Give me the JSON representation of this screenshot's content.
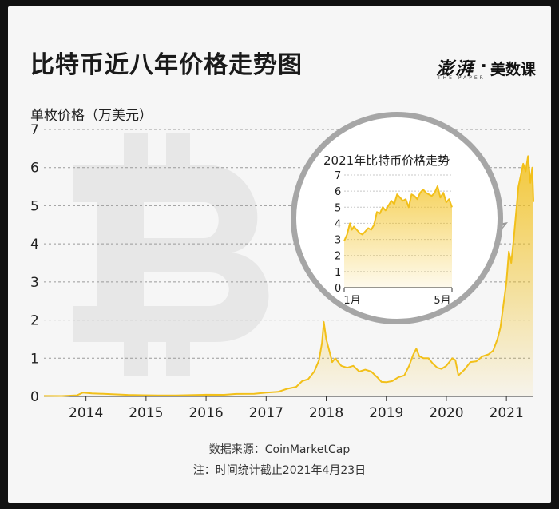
{
  "header": {
    "title": "比特币近八年价格走势图",
    "brand_main": "澎湃",
    "brand_sub": "THE PAPER",
    "brand_dot": "·",
    "brand_section": "美数课"
  },
  "footer": {
    "source": "数据来源：CoinMarketCap",
    "note": "注：时间统计截止2021年4月23日"
  },
  "colors": {
    "accent": "#f2c01a",
    "grid": "#9a9a9a",
    "watermark": "#e6e6e6"
  },
  "chart_data": [
    {
      "type": "area",
      "ylabel": "单枚价格（万美元）",
      "xlabel": "",
      "ylim": [
        0,
        7
      ],
      "yticks": [
        0,
        1,
        2,
        3,
        4,
        5,
        6,
        7
      ],
      "xticks": [
        "2014",
        "2015",
        "2016",
        "2017",
        "2018",
        "2019",
        "2020",
        "2021"
      ],
      "xlim": [
        2013.3,
        2021.45
      ],
      "grid": "horizontal dashed",
      "series": [
        {
          "x": [
            2013.3,
            2013.6,
            2013.85,
            2013.95,
            2014.1,
            2014.4,
            2014.7,
            2014.95,
            2015.2,
            2015.5,
            2015.8,
            2016.0,
            2016.3,
            2016.5,
            2016.8,
            2017.0,
            2017.2,
            2017.35,
            2017.5,
            2017.6,
            2017.7,
            2017.8,
            2017.88,
            2017.93,
            2017.96,
            2018.0,
            2018.05,
            2018.1,
            2018.15,
            2018.25,
            2018.35,
            2018.45,
            2018.55,
            2018.65,
            2018.75,
            2018.85,
            2018.92,
            2019.0,
            2019.1,
            2019.2,
            2019.3,
            2019.38,
            2019.45,
            2019.5,
            2019.55,
            2019.62,
            2019.7,
            2019.78,
            2019.85,
            2019.92,
            2020.0,
            2020.1,
            2020.15,
            2020.2,
            2020.3,
            2020.4,
            2020.5,
            2020.6,
            2020.7,
            2020.78,
            2020.85,
            2020.9,
            2020.95,
            2021.0,
            2021.04,
            2021.08,
            2021.12,
            2021.16,
            2021.2,
            2021.24,
            2021.28,
            2021.32,
            2021.36,
            2021.4,
            2021.43,
            2021.45
          ],
          "values": [
            0.012,
            0.01,
            0.03,
            0.1,
            0.08,
            0.06,
            0.04,
            0.032,
            0.025,
            0.027,
            0.038,
            0.043,
            0.042,
            0.065,
            0.07,
            0.1,
            0.12,
            0.2,
            0.25,
            0.4,
            0.45,
            0.65,
            0.95,
            1.4,
            1.95,
            1.5,
            1.2,
            0.9,
            1.0,
            0.8,
            0.75,
            0.8,
            0.65,
            0.7,
            0.65,
            0.5,
            0.38,
            0.37,
            0.4,
            0.5,
            0.55,
            0.8,
            1.1,
            1.25,
            1.05,
            1.0,
            1.0,
            0.85,
            0.75,
            0.72,
            0.8,
            1.0,
            0.95,
            0.55,
            0.7,
            0.9,
            0.92,
            1.05,
            1.1,
            1.2,
            1.5,
            1.8,
            2.4,
            3.0,
            3.8,
            3.5,
            4.1,
            4.8,
            5.5,
            5.8,
            6.1,
            5.9,
            6.3,
            5.6,
            6.0,
            5.1
          ]
        }
      ]
    },
    {
      "type": "area",
      "title": "2021年比特币价格走势",
      "xlabel": "",
      "ylabel": "",
      "ylim": [
        0,
        7
      ],
      "yticks": [
        0,
        1,
        2,
        3,
        4,
        5,
        6,
        7
      ],
      "xticks": [
        "1月",
        "5月"
      ],
      "xlim": [
        0,
        112
      ],
      "series": [
        {
          "x": [
            0,
            3,
            6,
            8,
            10,
            13,
            16,
            19,
            22,
            25,
            28,
            31,
            34,
            37,
            40,
            43,
            46,
            49,
            52,
            55,
            58,
            61,
            64,
            67,
            70,
            73,
            76,
            79,
            82,
            85,
            88,
            91,
            94,
            97,
            100,
            103,
            106,
            109,
            112
          ],
          "values": [
            2.9,
            3.3,
            4.0,
            3.6,
            3.8,
            3.6,
            3.4,
            3.3,
            3.5,
            3.7,
            3.6,
            3.9,
            4.7,
            4.6,
            5.0,
            4.8,
            5.1,
            5.4,
            5.2,
            5.8,
            5.6,
            5.4,
            5.5,
            5.0,
            5.8,
            5.7,
            5.5,
            5.9,
            6.1,
            5.9,
            5.8,
            5.7,
            5.9,
            6.3,
            5.6,
            5.9,
            5.3,
            5.5,
            5.0
          ]
        }
      ]
    }
  ]
}
